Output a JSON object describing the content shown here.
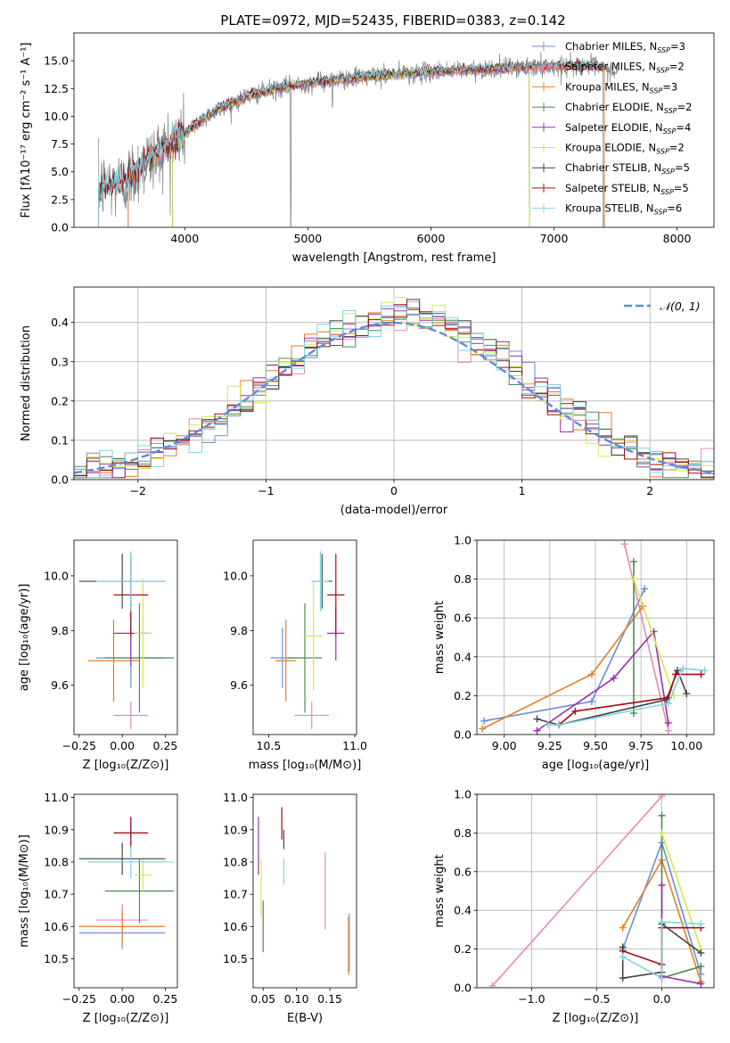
{
  "title": "PLATE=0972, MJD=52435, FIBERID=0383, z=0.142",
  "colors": {
    "Chabrier MILES": "#6a8fd8",
    "Salpeter MILES": "#e68ab8",
    "Kroupa MILES": "#e67e22",
    "Chabrier ELODIE": "#4f8a4f",
    "Salpeter ELODIE": "#9b2fae",
    "Kroupa ELODIE": "#d4e84a",
    "Chabrier STELIB": "#444444",
    "Salpeter STELIB": "#a50f15",
    "Kroupa STELIB": "#7fd3e0",
    "data": "#808080",
    "normal": "#5b8ed6"
  },
  "chart_data": [
    {
      "id": "spectrum",
      "type": "line",
      "xlabel": "wavelength [Angstrom, rest frame]",
      "ylabel": "Flux [fλ10⁻¹⁷ erg cm⁻² s⁻¹ A⁻¹]",
      "xlim": [
        3100,
        8300
      ],
      "ylim": [
        0,
        17.5
      ],
      "xticks": [
        "4000",
        "5000",
        "6000",
        "7000",
        "8000"
      ],
      "yticks": [
        "0.0",
        "2.5",
        "5.0",
        "7.5",
        "10.0",
        "12.5",
        "15.0"
      ],
      "legend": [
        {
          "label": "Chabrier MILES, N",
          "sub": "SSP",
          "suffix": "=3"
        },
        {
          "label": "Salpeter MILES, N",
          "sub": "SSP",
          "suffix": "=2"
        },
        {
          "label": "Kroupa MILES, N",
          "sub": "SSP",
          "suffix": "=3"
        },
        {
          "label": "Chabrier ELODIE, N",
          "sub": "SSP",
          "suffix": "=2"
        },
        {
          "label": "Salpeter ELODIE, N",
          "sub": "SSP",
          "suffix": "=4"
        },
        {
          "label": "Kroupa ELODIE, N",
          "sub": "SSP",
          "suffix": "=2"
        },
        {
          "label": "Chabrier STELIB, N",
          "sub": "SSP",
          "suffix": "=5"
        },
        {
          "label": "Salpeter STELIB, N",
          "sub": "SSP",
          "suffix": "=5"
        },
        {
          "label": "Kroupa STELIB, N",
          "sub": "SSP",
          "suffix": "=6"
        }
      ],
      "legend_position": "upper right",
      "continuum": [
        [
          3300,
          3.6
        ],
        [
          3500,
          4.0
        ],
        [
          3700,
          6.0
        ],
        [
          3900,
          7.7
        ],
        [
          4000,
          8.5
        ],
        [
          4200,
          10.2
        ],
        [
          4500,
          11.8
        ],
        [
          4800,
          12.6
        ],
        [
          5000,
          13.0
        ],
        [
          5500,
          13.6
        ],
        [
          6000,
          14.0
        ],
        [
          6500,
          14.3
        ],
        [
          7000,
          14.5
        ],
        [
          7300,
          14.6
        ],
        [
          7500,
          14.0
        ]
      ],
      "data_range": [
        3300,
        7520
      ],
      "model_ranges": {
        "MILES": [
          3540,
          7410
        ],
        "ELODIE": [
          3900,
          6800
        ],
        "STELIB": [
          3300,
          7400
        ]
      }
    },
    {
      "id": "residuals",
      "type": "step",
      "xlabel": "(data-model)/error",
      "ylabel": "Normed distribution",
      "xlim": [
        -2.5,
        2.5
      ],
      "ylim": [
        0,
        0.49
      ],
      "xticks": [
        "−2",
        "−1",
        "0",
        "1",
        "2"
      ],
      "yticks": [
        "0.0",
        "0.1",
        "0.2",
        "0.3",
        "0.4"
      ],
      "legend": "𝒩(0, 1)",
      "legend_position": "upper right",
      "bin_width": 0.1,
      "normal": {
        "mu": 0,
        "sigma": 1
      }
    },
    {
      "id": "age-vs-Z",
      "type": "errorbar",
      "xlabel": "Z [log₁₀(Z/Z⊙)]",
      "ylabel": "age  [log₁₀(age/yr)]",
      "xlim": [
        -0.28,
        0.32
      ],
      "ylim": [
        9.42,
        10.13
      ],
      "xticks": [
        "−0.25",
        "0.00",
        "0.25"
      ],
      "yticks": [
        "9.6",
        "9.8",
        "10.0"
      ],
      "points": [
        {
          "model": "Chabrier MILES",
          "x": 0.05,
          "xerr": 0.2,
          "y": 9.7,
          "yerr": 0.11
        },
        {
          "model": "Salpeter MILES",
          "x": 0.05,
          "xerr": 0.1,
          "y": 9.49,
          "yerr": 0.05
        },
        {
          "model": "Kroupa MILES",
          "x": -0.05,
          "xerr": 0.15,
          "y": 9.69,
          "yerr": 0.15
        },
        {
          "model": "Chabrier ELODIE",
          "x": 0.1,
          "xerr": 0.2,
          "y": 9.7,
          "yerr": 0.2
        },
        {
          "model": "Salpeter ELODIE",
          "x": 0.05,
          "xerr": 0.1,
          "y": 9.79,
          "yerr": 0.12
        },
        {
          "model": "Kroupa ELODIE",
          "x": 0.12,
          "xerr": 0.05,
          "y": 9.79,
          "yerr": 0.2
        },
        {
          "model": "Chabrier STELIB",
          "x": 0.0,
          "xerr": 0.25,
          "y": 9.98,
          "yerr": 0.1
        },
        {
          "model": "Salpeter STELIB",
          "x": 0.05,
          "xerr": 0.1,
          "y": 9.93,
          "yerr": 0.15
        },
        {
          "model": "Kroupa STELIB",
          "x": 0.05,
          "xerr": 0.2,
          "y": 9.98,
          "yerr": 0.11
        }
      ]
    },
    {
      "id": "age-vs-mass",
      "type": "errorbar",
      "xlabel": "mass [log₁₀(M/M⊙)]",
      "ylabel": "",
      "xlim": [
        10.41,
        11.01
      ],
      "ylim": [
        9.42,
        10.13
      ],
      "xticks": [
        "10.5",
        "11.0"
      ],
      "yticks": [
        "9.6",
        "9.8",
        "10.0"
      ],
      "points": [
        {
          "model": "Chabrier MILES",
          "x": 10.58,
          "xerr": 0.07,
          "y": 9.7,
          "yerr": 0.11
        },
        {
          "model": "Salpeter MILES",
          "x": 10.75,
          "xerr": 0.1,
          "y": 9.49,
          "yerr": 0.05
        },
        {
          "model": "Kroupa MILES",
          "x": 10.6,
          "xerr": 0.06,
          "y": 9.69,
          "yerr": 0.15
        },
        {
          "model": "Chabrier ELODIE",
          "x": 10.71,
          "xerr": 0.1,
          "y": 9.7,
          "yerr": 0.2
        },
        {
          "model": "Salpeter ELODIE",
          "x": 10.89,
          "xerr": 0.05,
          "y": 9.79,
          "yerr": 0.1
        },
        {
          "model": "Kroupa ELODIE",
          "x": 10.76,
          "xerr": 0.05,
          "y": 9.78,
          "yerr": 0.2
        },
        {
          "model": "Chabrier STELIB",
          "x": 10.81,
          "xerr": 0.06,
          "y": 9.98,
          "yerr": 0.1
        },
        {
          "model": "Salpeter STELIB",
          "x": 10.89,
          "xerr": 0.05,
          "y": 9.93,
          "yerr": 0.15
        },
        {
          "model": "Kroupa STELIB",
          "x": 10.8,
          "xerr": 0.05,
          "y": 9.98,
          "yerr": 0.11
        }
      ]
    },
    {
      "id": "weight-vs-age",
      "type": "line",
      "xlabel": "age  [log₁₀(age/yr)]",
      "ylabel": "mass weight",
      "xlim": [
        8.85,
        10.15
      ],
      "ylim": [
        0,
        1
      ],
      "xticks": [
        "9.00",
        "9.25",
        "9.50",
        "9.75",
        "10.00"
      ],
      "yticks": [
        "0.0",
        "0.2",
        "0.4",
        "0.6",
        "0.8",
        "1.0"
      ],
      "series": [
        {
          "model": "Chabrier MILES",
          "x": [
            8.89,
            9.48,
            9.77
          ],
          "y": [
            0.07,
            0.17,
            0.75
          ]
        },
        {
          "model": "Salpeter MILES",
          "x": [
            9.66,
            9.9
          ],
          "y": [
            0.98,
            0.02
          ]
        },
        {
          "model": "Kroupa MILES",
          "x": [
            8.88,
            9.48,
            9.76
          ],
          "y": [
            0.03,
            0.31,
            0.66
          ]
        },
        {
          "model": "Chabrier ELODIE",
          "x": [
            9.71,
            9.71
          ],
          "y": [
            0.89,
            0.11
          ]
        },
        {
          "model": "Salpeter ELODIE",
          "x": [
            9.18,
            9.6,
            9.82,
            9.9
          ],
          "y": [
            0.02,
            0.29,
            0.53,
            0.06
          ]
        },
        {
          "model": "Kroupa ELODIE",
          "x": [
            9.71,
            9.93
          ],
          "y": [
            0.8,
            0.2
          ]
        },
        {
          "model": "Chabrier STELIB",
          "x": [
            9.18,
            9.3,
            9.89,
            9.95,
            10.0
          ],
          "y": [
            0.08,
            0.05,
            0.18,
            0.33,
            0.21
          ]
        },
        {
          "model": "Salpeter STELIB",
          "x": [
            9.3,
            9.39,
            9.9,
            9.94,
            10.08
          ],
          "y": [
            0.05,
            0.12,
            0.19,
            0.31,
            0.31
          ]
        },
        {
          "model": "Kroupa STELIB",
          "x": [
            9.24,
            9.3,
            9.9,
            9.98,
            10.1
          ],
          "y": [
            0.05,
            0.05,
            0.16,
            0.34,
            0.33
          ]
        }
      ]
    },
    {
      "id": "mass-vs-Z",
      "type": "errorbar",
      "xlabel": "Z [log₁₀(Z/Z⊙)]",
      "ylabel": "mass [log₁₀(M/M⊙)]",
      "xlim": [
        -0.28,
        0.32
      ],
      "ylim": [
        10.41,
        11.01
      ],
      "xticks": [
        "−0.25",
        "0.00",
        "0.25"
      ],
      "yticks": [
        "10.5",
        "10.6",
        "10.7",
        "10.8",
        "10.9",
        "11.0"
      ],
      "points": [
        {
          "model": "Chabrier MILES",
          "x": 0.0,
          "xerr": 0.25,
          "y": 10.58,
          "yerr": 0.05
        },
        {
          "model": "Salpeter MILES",
          "x": 0.0,
          "xerr": 0.15,
          "y": 10.62,
          "yerr": 0.05
        },
        {
          "model": "Kroupa MILES",
          "x": 0.0,
          "xerr": 0.25,
          "y": 10.6,
          "yerr": 0.05
        },
        {
          "model": "Chabrier ELODIE",
          "x": 0.1,
          "xerr": 0.2,
          "y": 10.71,
          "yerr": 0.1
        },
        {
          "model": "Salpeter ELODIE",
          "x": 0.05,
          "xerr": 0.1,
          "y": 10.89,
          "yerr": 0.05
        },
        {
          "model": "Kroupa ELODIE",
          "x": 0.12,
          "xerr": 0.05,
          "y": 10.76,
          "yerr": 0.05
        },
        {
          "model": "Chabrier STELIB",
          "x": 0.0,
          "xerr": 0.25,
          "y": 10.81,
          "yerr": 0.05
        },
        {
          "model": "Salpeter STELIB",
          "x": 0.05,
          "xerr": 0.1,
          "y": 10.89,
          "yerr": 0.05
        },
        {
          "model": "Kroupa STELIB",
          "x": 0.05,
          "xerr": 0.25,
          "y": 10.8,
          "yerr": 0.05
        }
      ]
    },
    {
      "id": "mass-vs-ebv",
      "type": "errorbar",
      "xlabel": "E(B-V)",
      "ylabel": "",
      "xlim": [
        0.035,
        0.19
      ],
      "ylim": [
        10.41,
        11.01
      ],
      "xticks": [
        "0.05",
        "0.10",
        "0.15"
      ],
      "yticks": [
        "10.5",
        "10.6",
        "10.7",
        "10.8",
        "10.9",
        "11.0"
      ],
      "points": [
        {
          "model": "Chabrier MILES",
          "x": 0.179,
          "xerr": 0,
          "y": 10.55,
          "yerr": 0.09
        },
        {
          "model": "Salpeter MILES",
          "x": 0.143,
          "xerr": 0,
          "y": 10.71,
          "yerr": 0.12
        },
        {
          "model": "Kroupa MILES",
          "x": 0.178,
          "xerr": 0,
          "y": 10.54,
          "yerr": 0.09
        },
        {
          "model": "Chabrier ELODIE",
          "x": 0.05,
          "xerr": 0,
          "y": 10.6,
          "yerr": 0.08
        },
        {
          "model": "Salpeter ELODIE",
          "x": 0.043,
          "xerr": 0,
          "y": 10.85,
          "yerr": 0.09
        },
        {
          "model": "Kroupa ELODIE",
          "x": 0.047,
          "xerr": 0,
          "y": 10.72,
          "yerr": 0.09
        },
        {
          "model": "Chabrier STELIB",
          "x": 0.081,
          "xerr": 0,
          "y": 10.87,
          "yerr": 0.03
        },
        {
          "model": "Salpeter STELIB",
          "x": 0.078,
          "xerr": 0,
          "y": 10.92,
          "yerr": 0.05
        },
        {
          "model": "Kroupa STELIB",
          "x": 0.081,
          "xerr": 0,
          "y": 10.77,
          "yerr": 0.04
        }
      ]
    },
    {
      "id": "weight-vs-Z",
      "type": "line",
      "xlabel": "Z [log₁₀(Z/Z⊙)]",
      "ylabel": "mass weight",
      "xlim": [
        -1.42,
        0.4
      ],
      "ylim": [
        0,
        1
      ],
      "xticks": [
        "−1.0",
        "−0.5",
        "0.0"
      ],
      "yticks": [
        "0.0",
        "0.2",
        "0.4",
        "0.6",
        "0.8",
        "1.0"
      ],
      "series": [
        {
          "model": "Salpeter MILES",
          "x": [
            -1.3,
            0.0
          ],
          "y": [
            0.01,
            0.99
          ]
        },
        {
          "model": "Chabrier MILES",
          "x": [
            -0.3,
            0.0,
            0.3
          ],
          "y": [
            0.2,
            0.75,
            0.07
          ]
        },
        {
          "model": "Kroupa MILES",
          "x": [
            -0.3,
            0.0,
            0.3
          ],
          "y": [
            0.31,
            0.66,
            0.03
          ]
        },
        {
          "model": "Chabrier ELODIE",
          "x": [
            0.0,
            0.0,
            0.3
          ],
          "y": [
            0.89,
            0.05,
            0.11
          ]
        },
        {
          "model": "Salpeter ELODIE",
          "x": [
            0.0,
            0.0,
            0.3
          ],
          "y": [
            0.53,
            0.06,
            0.02
          ]
        },
        {
          "model": "Kroupa ELODIE",
          "x": [
            0.0,
            0.3
          ],
          "y": [
            0.8,
            0.2
          ]
        },
        {
          "model": "Chabrier STELIB",
          "x": [
            -0.3,
            -0.3,
            0.0,
            0.0,
            0.3
          ],
          "y": [
            0.21,
            0.05,
            0.08,
            0.33,
            0.18
          ]
        },
        {
          "model": "Salpeter STELIB",
          "x": [
            -0.3,
            0.0,
            0.0,
            0.3
          ],
          "y": [
            0.19,
            0.12,
            0.31,
            0.31
          ]
        },
        {
          "model": "Kroupa STELIB",
          "x": [
            -0.3,
            0.0,
            0.0,
            0.3
          ],
          "y": [
            0.16,
            0.05,
            0.34,
            0.33
          ]
        }
      ]
    }
  ]
}
